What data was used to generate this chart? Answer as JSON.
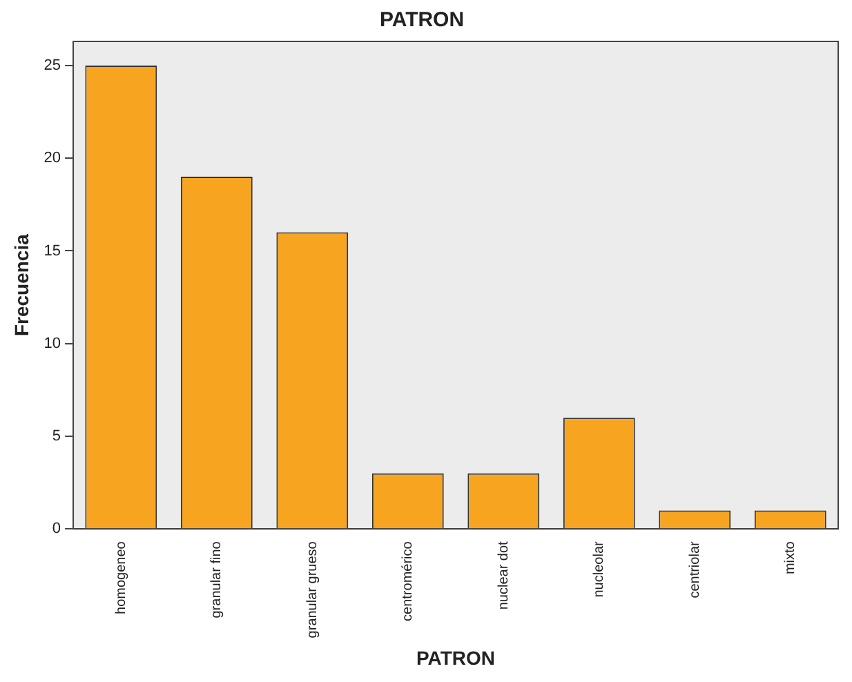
{
  "chart_data": {
    "type": "bar",
    "title": "PATRON",
    "xlabel": "PATRON",
    "ylabel": "Frecuencia",
    "categories": [
      "homogeneo",
      "granular fino",
      "granular grueso",
      "centromérico",
      "nuclear dot",
      "nucleolar",
      "centriolar",
      "mixto"
    ],
    "values": [
      25,
      19,
      16,
      3,
      3,
      6,
      1,
      1
    ],
    "color": "#f7a520",
    "ylim": [
      0,
      26.3
    ],
    "yticks": [
      0,
      5,
      10,
      15,
      20,
      25
    ],
    "grid": false,
    "legend": false
  }
}
